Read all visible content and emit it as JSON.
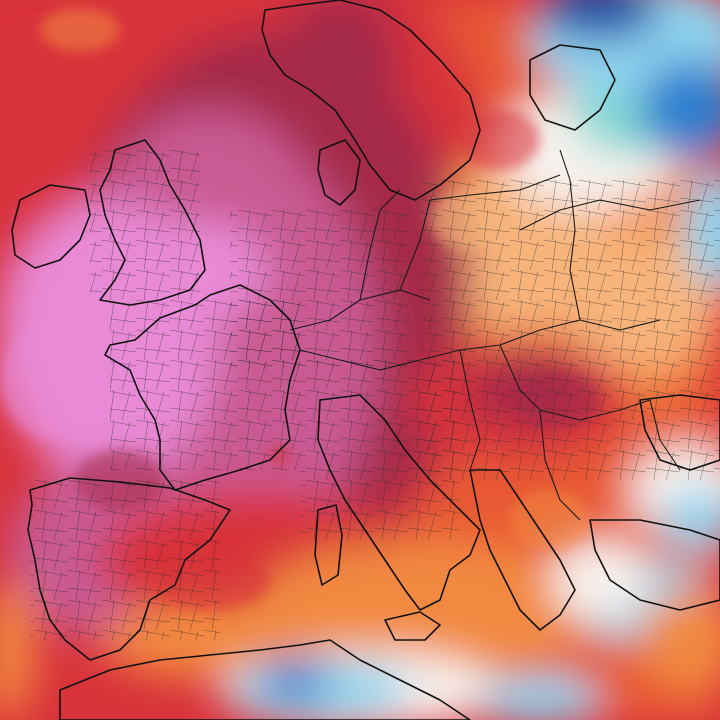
{
  "map": {
    "kind": "temperature-anomaly-forecast",
    "region": "Europe",
    "colors": {
      "extreme_magenta": "#e98ad6",
      "very_hot_pink": "#c95a93",
      "hot_maroon": "#a52a4a",
      "hot_red": "#d8323a",
      "warm_redorange": "#e85a34",
      "warm_orange": "#f2893f",
      "mild_lightorange": "#f7b47a",
      "neutral_white": "#f7f2ee",
      "cool_lightblue": "#8fd3ee",
      "cold_blue": "#2f7fcf",
      "very_cold_darkblue": "#1f4fa8",
      "teal": "#7fd8d0",
      "coastline": "#111111"
    },
    "labels_visible": false
  }
}
